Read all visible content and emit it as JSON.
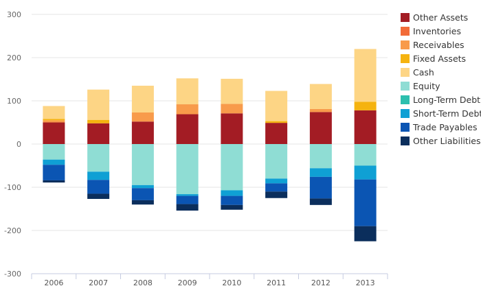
{
  "chart_data": {
    "type": "bar",
    "stacked": true,
    "categories": [
      "2006",
      "2007",
      "2008",
      "2009",
      "2010",
      "2011",
      "2012",
      "2013"
    ],
    "ylim": [
      -300,
      300
    ],
    "yticks": [
      300,
      200,
      100,
      0,
      -100,
      -200,
      -300
    ],
    "grid": true,
    "legend_position": "right",
    "title": "",
    "xlabel": "",
    "ylabel": "",
    "series": [
      {
        "name": "Other Assets",
        "color": "#a31c24",
        "values": [
          50,
          48,
          52,
          69,
          71,
          49,
          74,
          78
        ]
      },
      {
        "name": "Inventories",
        "color": "#f26b38",
        "values": [
          0,
          0,
          0,
          0,
          0,
          0,
          0,
          0
        ]
      },
      {
        "name": "Receivables",
        "color": "#f89b4b",
        "values": [
          5,
          0,
          21,
          23,
          22,
          0,
          7,
          0
        ]
      },
      {
        "name": "Fixed Assets",
        "color": "#f5b30f",
        "values": [
          3,
          8,
          0,
          0,
          0,
          4,
          0,
          20
        ]
      },
      {
        "name": "Cash",
        "color": "#fdd585",
        "values": [
          30,
          70,
          62,
          60,
          58,
          70,
          58,
          122
        ]
      },
      {
        "name": "Equity",
        "color": "#8fddd4",
        "values": [
          -36,
          -64,
          -95,
          -116,
          -107,
          -80,
          -56,
          -50
        ]
      },
      {
        "name": "Long-Term Debt",
        "color": "#2cbfae",
        "values": [
          0,
          0,
          0,
          0,
          0,
          0,
          0,
          0
        ]
      },
      {
        "name": "Short-Term Debt",
        "color": "#0fa0d4",
        "values": [
          -12,
          -19,
          -7,
          -4,
          -13,
          -11,
          -20,
          -32
        ]
      },
      {
        "name": "Trade Payables",
        "color": "#0b55b3",
        "values": [
          -36,
          -32,
          -28,
          -19,
          -21,
          -19,
          -50,
          -108
        ]
      },
      {
        "name": "Other Liabilities",
        "color": "#0b2e5c",
        "values": [
          -5,
          -12,
          -10,
          -15,
          -11,
          -15,
          -15,
          -35
        ]
      }
    ]
  }
}
